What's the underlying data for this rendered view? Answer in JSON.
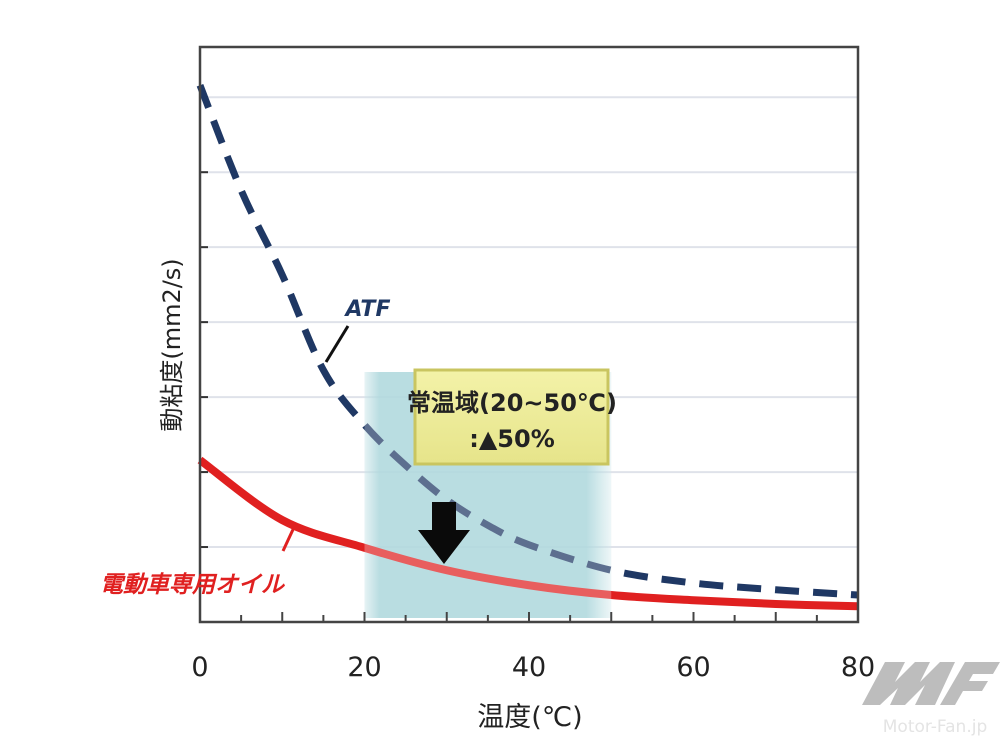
{
  "chart_data": {
    "type": "line",
    "title": "",
    "xlabel": "温度(℃)",
    "ylabel": "動粘度(mm2/s)",
    "xlim": [
      0,
      80
    ],
    "ylim": [
      0,
      7.67
    ],
    "x_ticks": [
      0,
      20,
      40,
      60,
      80
    ],
    "x_tick_labels": [
      "0",
      "20",
      "40",
      "60",
      "80"
    ],
    "y_gridlines": [
      1,
      2,
      3,
      4,
      5,
      6,
      7
    ],
    "grid": true,
    "series": [
      {
        "name": "ATF",
        "style": "dashed",
        "color": "#1f3864",
        "x": [
          0,
          5,
          10,
          15,
          20,
          25,
          30,
          35,
          40,
          50,
          60,
          70,
          80
        ],
        "y": [
          7.16,
          5.76,
          4.63,
          3.36,
          2.63,
          2.09,
          1.63,
          1.29,
          1.03,
          0.69,
          0.52,
          0.43,
          0.36
        ]
      },
      {
        "name": "電動車専用オイル",
        "style": "solid",
        "color": "#e02020",
        "x": [
          0,
          10,
          20,
          30,
          40,
          50,
          60,
          70,
          80
        ],
        "y": [
          2.16,
          1.36,
          0.99,
          0.69,
          0.49,
          0.36,
          0.29,
          0.24,
          0.21
        ]
      }
    ],
    "highlight_range": {
      "x": [
        20,
        50
      ],
      "color": "#8ec8cf"
    },
    "annotation": {
      "line1": "常温域(20~50℃)",
      "line2": ":▲50%"
    }
  },
  "watermark": {
    "logo_text": "MF",
    "site": "Motor-Fan.jp"
  }
}
